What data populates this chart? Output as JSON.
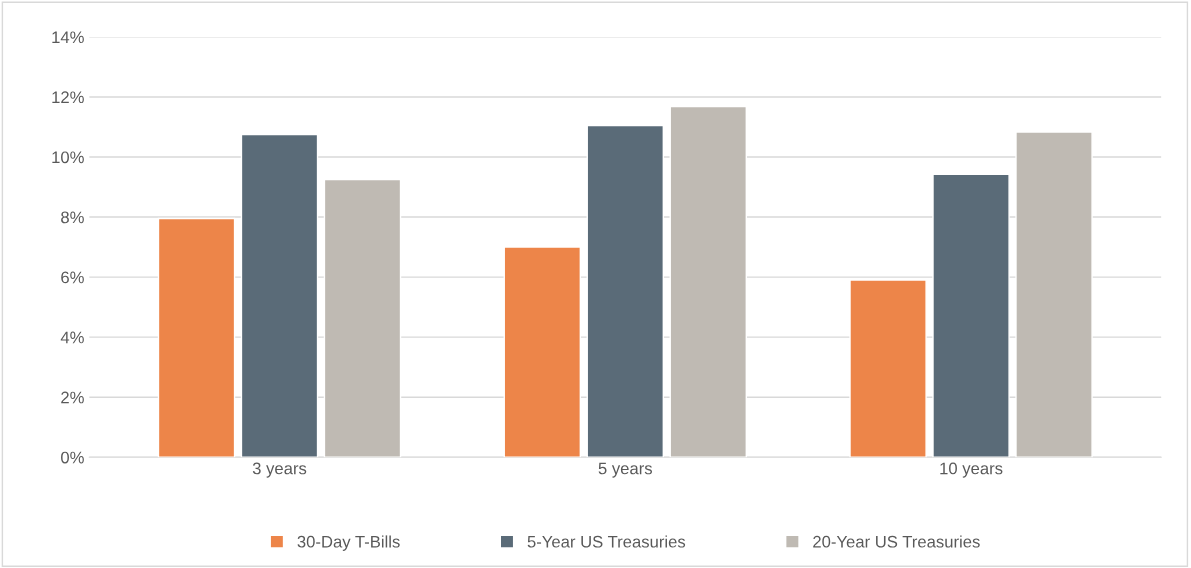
{
  "chart_data": {
    "type": "bar",
    "categories": [
      "3 years",
      "5 years",
      "10 years"
    ],
    "series": [
      {
        "name": "30-Day T-Bills",
        "color": "#ed8549",
        "values": [
          7.95,
          7.0,
          5.9
        ]
      },
      {
        "name": "5-Year US Treasuries",
        "color": "#5a6b78",
        "values": [
          10.75,
          11.05,
          9.42
        ]
      },
      {
        "name": "20-Year US Treasuries",
        "color": "#bfbab3",
        "values": [
          9.25,
          11.68,
          10.83
        ]
      }
    ],
    "ylim": [
      0,
      14
    ],
    "yticks": [
      {
        "value": 0,
        "label": "0%"
      },
      {
        "value": 2,
        "label": "2%"
      },
      {
        "value": 4,
        "label": "4%"
      },
      {
        "value": 6,
        "label": "6%"
      },
      {
        "value": 8,
        "label": "8%"
      },
      {
        "value": 10,
        "label": "10%"
      },
      {
        "value": 12,
        "label": "12%"
      },
      {
        "value": 14,
        "label": "14%"
      }
    ],
    "grid": "y",
    "legend": "bottom"
  }
}
